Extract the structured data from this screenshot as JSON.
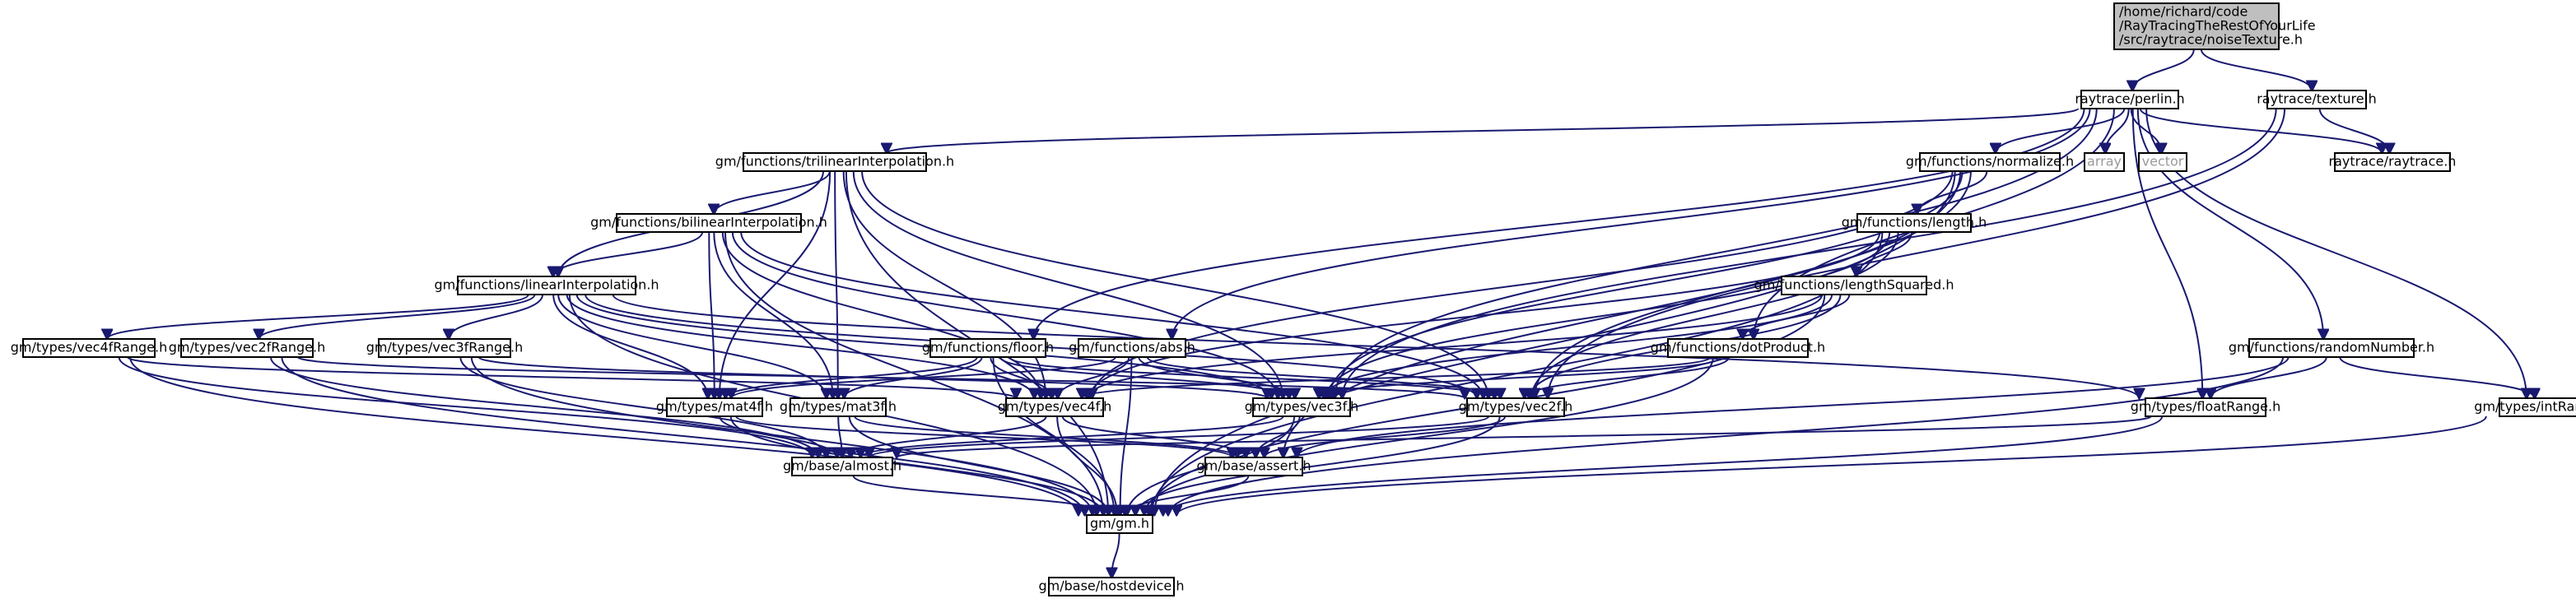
{
  "nodes": [
    {
      "id": "root",
      "lines": [
        "/home/richard/code",
        "/RayTracingTheRestOfYourLife",
        "/src/raytrace/noiseTexture.h"
      ],
      "style": "root"
    },
    {
      "id": "perlin",
      "lines": [
        "raytrace/perlin.h"
      ]
    },
    {
      "id": "texture",
      "lines": [
        "raytrace/texture.h"
      ]
    },
    {
      "id": "trilinear",
      "lines": [
        "gm/functions/trilinearInterpolation.h"
      ]
    },
    {
      "id": "array",
      "lines": [
        "array"
      ],
      "style": "gray"
    },
    {
      "id": "vector",
      "lines": [
        "vector"
      ],
      "style": "gray"
    },
    {
      "id": "raytraceh",
      "lines": [
        "raytrace/raytrace.h"
      ]
    },
    {
      "id": "normalize",
      "lines": [
        "gm/functions/normalize.h"
      ]
    },
    {
      "id": "bilinear",
      "lines": [
        "gm/functions/bilinearInterpolation.h"
      ]
    },
    {
      "id": "length",
      "lines": [
        "gm/functions/length.h"
      ]
    },
    {
      "id": "linear",
      "lines": [
        "gm/functions/linearInterpolation.h"
      ]
    },
    {
      "id": "lengthSquared",
      "lines": [
        "gm/functions/lengthSquared.h"
      ]
    },
    {
      "id": "vec4fRange",
      "lines": [
        "gm/types/vec4fRange.h"
      ]
    },
    {
      "id": "vec2fRange",
      "lines": [
        "gm/types/vec2fRange.h"
      ]
    },
    {
      "id": "vec3fRange",
      "lines": [
        "gm/types/vec3fRange.h"
      ]
    },
    {
      "id": "floor",
      "lines": [
        "gm/functions/floor.h"
      ]
    },
    {
      "id": "abs",
      "lines": [
        "gm/functions/abs.h"
      ]
    },
    {
      "id": "dotProduct",
      "lines": [
        "gm/functions/dotProduct.h"
      ]
    },
    {
      "id": "randomNumber",
      "lines": [
        "gm/functions/randomNumber.h"
      ]
    },
    {
      "id": "mat4f",
      "lines": [
        "gm/types/mat4f.h"
      ]
    },
    {
      "id": "mat3f",
      "lines": [
        "gm/types/mat3f.h"
      ]
    },
    {
      "id": "vec4f",
      "lines": [
        "gm/types/vec4f.h"
      ]
    },
    {
      "id": "vec3f",
      "lines": [
        "gm/types/vec3f.h"
      ]
    },
    {
      "id": "vec2f",
      "lines": [
        "gm/types/vec2f.h"
      ]
    },
    {
      "id": "floatRange",
      "lines": [
        "gm/types/floatRange.h"
      ]
    },
    {
      "id": "intRange",
      "lines": [
        "gm/types/intRange.h"
      ]
    },
    {
      "id": "almost",
      "lines": [
        "gm/base/almost.h"
      ]
    },
    {
      "id": "assert",
      "lines": [
        "gm/base/assert.h"
      ]
    },
    {
      "id": "gm",
      "lines": [
        "gm/gm.h"
      ]
    },
    {
      "id": "hostdevice",
      "lines": [
        "gm/base/hostdevice.h"
      ]
    }
  ],
  "edges": [
    [
      "root",
      "perlin"
    ],
    [
      "root",
      "texture"
    ],
    [
      "perlin",
      "trilinear"
    ],
    [
      "perlin",
      "array"
    ],
    [
      "perlin",
      "vector"
    ],
    [
      "perlin",
      "raytraceh"
    ],
    [
      "perlin",
      "normalize"
    ],
    [
      "perlin",
      "dotProduct"
    ],
    [
      "perlin",
      "randomNumber"
    ],
    [
      "perlin",
      "floor"
    ],
    [
      "perlin",
      "abs"
    ],
    [
      "perlin",
      "floatRange"
    ],
    [
      "perlin",
      "intRange"
    ],
    [
      "perlin",
      "vec3f"
    ],
    [
      "texture",
      "raytraceh"
    ],
    [
      "texture",
      "vec3f"
    ],
    [
      "texture",
      "vec2f"
    ],
    [
      "trilinear",
      "bilinear"
    ],
    [
      "trilinear",
      "linear"
    ],
    [
      "trilinear",
      "vec4f"
    ],
    [
      "trilinear",
      "vec3f"
    ],
    [
      "trilinear",
      "vec2f"
    ],
    [
      "trilinear",
      "mat4f"
    ],
    [
      "trilinear",
      "mat3f"
    ],
    [
      "trilinear",
      "gm"
    ],
    [
      "normalize",
      "length"
    ],
    [
      "normalize",
      "vec4f"
    ],
    [
      "normalize",
      "vec3f"
    ],
    [
      "normalize",
      "vec2f"
    ],
    [
      "normalize",
      "assert"
    ],
    [
      "normalize",
      "gm"
    ],
    [
      "bilinear",
      "linear"
    ],
    [
      "bilinear",
      "vec4f"
    ],
    [
      "bilinear",
      "vec3f"
    ],
    [
      "bilinear",
      "vec2f"
    ],
    [
      "bilinear",
      "mat4f"
    ],
    [
      "bilinear",
      "mat3f"
    ],
    [
      "bilinear",
      "gm"
    ],
    [
      "length",
      "lengthSquared"
    ],
    [
      "length",
      "vec4f"
    ],
    [
      "length",
      "vec3f"
    ],
    [
      "length",
      "vec2f"
    ],
    [
      "length",
      "gm"
    ],
    [
      "linear",
      "vec4fRange"
    ],
    [
      "linear",
      "vec2fRange"
    ],
    [
      "linear",
      "vec3fRange"
    ],
    [
      "linear",
      "floatRange"
    ],
    [
      "linear",
      "vec4f"
    ],
    [
      "linear",
      "vec3f"
    ],
    [
      "linear",
      "vec2f"
    ],
    [
      "linear",
      "mat4f"
    ],
    [
      "linear",
      "mat3f"
    ],
    [
      "linear",
      "gm"
    ],
    [
      "lengthSquared",
      "dotProduct"
    ],
    [
      "lengthSquared",
      "vec4f"
    ],
    [
      "lengthSquared",
      "vec3f"
    ],
    [
      "lengthSquared",
      "vec2f"
    ],
    [
      "lengthSquared",
      "gm"
    ],
    [
      "vec4fRange",
      "vec4f"
    ],
    [
      "vec4fRange",
      "almost"
    ],
    [
      "vec4fRange",
      "gm"
    ],
    [
      "vec2fRange",
      "vec2f"
    ],
    [
      "vec2fRange",
      "almost"
    ],
    [
      "vec2fRange",
      "gm"
    ],
    [
      "vec3fRange",
      "vec3f"
    ],
    [
      "vec3fRange",
      "almost"
    ],
    [
      "vec3fRange",
      "gm"
    ],
    [
      "floor",
      "vec4f"
    ],
    [
      "floor",
      "vec3f"
    ],
    [
      "floor",
      "vec2f"
    ],
    [
      "floor",
      "mat4f"
    ],
    [
      "floor",
      "mat3f"
    ],
    [
      "floor",
      "gm"
    ],
    [
      "abs",
      "vec4f"
    ],
    [
      "abs",
      "vec3f"
    ],
    [
      "abs",
      "vec2f"
    ],
    [
      "abs",
      "mat4f"
    ],
    [
      "abs",
      "gm"
    ],
    [
      "dotProduct",
      "vec4f"
    ],
    [
      "dotProduct",
      "vec3f"
    ],
    [
      "dotProduct",
      "vec2f"
    ],
    [
      "dotProduct",
      "gm"
    ],
    [
      "randomNumber",
      "floatRange"
    ],
    [
      "randomNumber",
      "intRange"
    ],
    [
      "randomNumber",
      "assert"
    ],
    [
      "randomNumber",
      "gm"
    ],
    [
      "mat4f",
      "almost"
    ],
    [
      "mat4f",
      "assert"
    ],
    [
      "mat4f",
      "gm"
    ],
    [
      "mat3f",
      "almost"
    ],
    [
      "mat3f",
      "assert"
    ],
    [
      "mat3f",
      "gm"
    ],
    [
      "vec4f",
      "almost"
    ],
    [
      "vec4f",
      "assert"
    ],
    [
      "vec4f",
      "gm"
    ],
    [
      "vec3f",
      "almost"
    ],
    [
      "vec3f",
      "assert"
    ],
    [
      "vec3f",
      "gm"
    ],
    [
      "vec2f",
      "almost"
    ],
    [
      "vec2f",
      "assert"
    ],
    [
      "vec2f",
      "gm"
    ],
    [
      "floatRange",
      "almost"
    ],
    [
      "floatRange",
      "gm"
    ],
    [
      "intRange",
      "gm"
    ],
    [
      "almost",
      "gm"
    ],
    [
      "assert",
      "gm"
    ],
    [
      "gm",
      "hostdevice"
    ]
  ],
  "colors": {
    "edge": "#191970",
    "root_fill": "#bfbfbf",
    "node_fill": "#ffffff",
    "node_border": "#000000",
    "gray_border": "#bfbfbf",
    "gray_text": "#9a9a9a"
  }
}
